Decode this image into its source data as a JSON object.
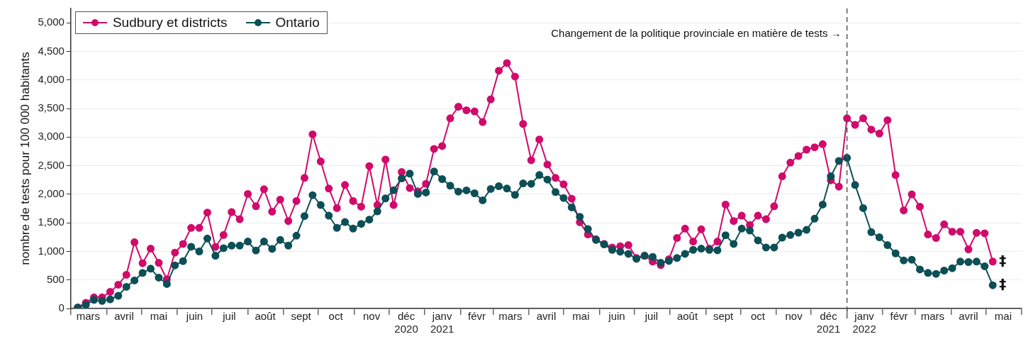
{
  "chart_data": {
    "type": "line",
    "ylabel": "nombre de tests pour 100 000 habitants",
    "x": [
      "2020-03-07",
      "2020-03-14",
      "2020-03-21",
      "2020-03-28",
      "2020-04-04",
      "2020-04-11",
      "2020-04-18",
      "2020-04-25",
      "2020-05-02",
      "2020-05-09",
      "2020-05-16",
      "2020-05-23",
      "2020-05-30",
      "2020-06-06",
      "2020-06-13",
      "2020-06-20",
      "2020-06-27",
      "2020-07-04",
      "2020-07-11",
      "2020-07-18",
      "2020-07-25",
      "2020-08-01",
      "2020-08-08",
      "2020-08-15",
      "2020-08-22",
      "2020-08-29",
      "2020-09-05",
      "2020-09-12",
      "2020-09-19",
      "2020-09-26",
      "2020-10-03",
      "2020-10-10",
      "2020-10-17",
      "2020-10-24",
      "2020-10-31",
      "2020-11-07",
      "2020-11-14",
      "2020-11-21",
      "2020-11-28",
      "2020-12-05",
      "2020-12-12",
      "2020-12-19",
      "2020-12-26",
      "2021-01-02",
      "2021-01-09",
      "2021-01-16",
      "2021-01-23",
      "2021-01-30",
      "2021-02-06",
      "2021-02-13",
      "2021-02-20",
      "2021-02-27",
      "2021-03-06",
      "2021-03-13",
      "2021-03-20",
      "2021-03-27",
      "2021-04-03",
      "2021-04-10",
      "2021-04-17",
      "2021-04-24",
      "2021-05-01",
      "2021-05-08",
      "2021-05-15",
      "2021-05-22",
      "2021-05-29",
      "2021-06-05",
      "2021-06-12",
      "2021-06-19",
      "2021-06-26",
      "2021-07-03",
      "2021-07-10",
      "2021-07-17",
      "2021-07-24",
      "2021-07-31",
      "2021-08-07",
      "2021-08-14",
      "2021-08-21",
      "2021-08-28",
      "2021-09-04",
      "2021-09-11",
      "2021-09-18",
      "2021-09-25",
      "2021-10-02",
      "2021-10-09",
      "2021-10-16",
      "2021-10-23",
      "2021-10-30",
      "2021-11-06",
      "2021-11-13",
      "2021-11-20",
      "2021-11-27",
      "2021-12-04",
      "2021-12-11",
      "2021-12-18",
      "2021-12-25",
      "2022-01-01",
      "2022-01-08",
      "2022-01-15",
      "2022-01-22",
      "2022-01-29",
      "2022-02-05",
      "2022-02-12",
      "2022-02-19",
      "2022-02-26",
      "2022-03-05",
      "2022-03-12",
      "2022-03-19",
      "2022-03-26",
      "2022-04-02",
      "2022-04-09",
      "2022-04-16",
      "2022-04-23",
      "2022-04-30",
      "2022-05-07"
    ],
    "series": [
      {
        "name": "Sudbury et districts",
        "color": "#d10a6b",
        "values": [
          20,
          100,
          195,
          195,
          293,
          417,
          590,
          1160,
          792,
          1048,
          800,
          512,
          978,
          1130,
          1411,
          1411,
          1679,
          1077,
          1287,
          1687,
          1563,
          2005,
          1790,
          2088,
          1695,
          1906,
          1531,
          1881,
          2286,
          3048,
          2574,
          2100,
          1757,
          2162,
          1881,
          1782,
          2492,
          1811,
          2607,
          1811,
          2389,
          2108,
          2050,
          2182,
          2793,
          2843,
          3329,
          3531,
          3469,
          3449,
          3264,
          3660,
          4162,
          4295,
          4059,
          3230,
          2595,
          2958,
          2521,
          2286,
          2174,
          1922,
          1510,
          1296,
          1213,
          1130,
          1068,
          1089,
          1110,
          883,
          924,
          821,
          759,
          862,
          1234,
          1398,
          1172,
          1386,
          1048,
          1172,
          1819,
          1531,
          1625,
          1460,
          1625,
          1563,
          1790,
          2314,
          2553,
          2669,
          2780,
          2822,
          2875,
          2244,
          2133,
          3329,
          3214,
          3329,
          3131,
          3061,
          3296,
          2335,
          1717,
          1997,
          1782,
          1296,
          1234,
          1473,
          1345,
          1345,
          1036,
          1324,
          1316,
          821
        ]
      },
      {
        "name": "Ontario",
        "color": "#0d4f56",
        "values": [
          15,
          66,
          152,
          132,
          161,
          223,
          380,
          491,
          623,
          697,
          541,
          429,
          755,
          829,
          1081,
          998,
          1225,
          924,
          1056,
          1101,
          1101,
          1172,
          1015,
          1172,
          1044,
          1200,
          1101,
          1275,
          1617,
          1984,
          1811,
          1625,
          1411,
          1514,
          1398,
          1481,
          1555,
          1699,
          1927,
          2071,
          2277,
          2360,
          2005,
          2030,
          2397,
          2265,
          2150,
          2046,
          2067,
          2017,
          1894,
          2092,
          2141,
          2100,
          1989,
          2190,
          2182,
          2335,
          2256,
          2038,
          1934,
          1770,
          1605,
          1390,
          1200,
          1122,
          1027,
          994,
          957,
          870,
          924,
          903,
          800,
          833,
          883,
          957,
          1027,
          1048,
          1027,
          1019,
          1283,
          1130,
          1398,
          1365,
          1192,
          1068,
          1068,
          1241,
          1287,
          1328,
          1377,
          1572,
          1819,
          2314,
          2583,
          2636,
          2162,
          1757,
          1337,
          1246,
          1110,
          965,
          842,
          854,
          684,
          623,
          606,
          664,
          705,
          821,
          813,
          821,
          739,
          408
        ]
      }
    ],
    "xlim": [
      "2020-03-01",
      "2022-06-01"
    ],
    "xticks": [
      {
        "value": "2020-03-01",
        "label": null
      },
      {
        "value": "2020-03-16",
        "label": "mars"
      },
      {
        "value": "2020-04-01",
        "label": null
      },
      {
        "value": "2020-04-16",
        "label": "avril"
      },
      {
        "value": "2020-05-01",
        "label": null
      },
      {
        "value": "2020-05-16",
        "label": "mai"
      },
      {
        "value": "2020-06-01",
        "label": null
      },
      {
        "value": "2020-06-16",
        "label": "juin"
      },
      {
        "value": "2020-07-01",
        "label": null
      },
      {
        "value": "2020-07-16",
        "label": "juil"
      },
      {
        "value": "2020-08-01",
        "label": null
      },
      {
        "value": "2020-08-16",
        "label": "août"
      },
      {
        "value": "2020-09-01",
        "label": null
      },
      {
        "value": "2020-09-16",
        "label": "sept"
      },
      {
        "value": "2020-10-01",
        "label": null
      },
      {
        "value": "2020-10-16",
        "label": "oct"
      },
      {
        "value": "2020-11-01",
        "label": null
      },
      {
        "value": "2020-11-16",
        "label": "nov"
      },
      {
        "value": "2020-12-01",
        "label": null
      },
      {
        "value": "2020-12-16",
        "label": "déc\n2020"
      },
      {
        "value": "2021-01-01",
        "label": null
      },
      {
        "value": "2021-01-16",
        "label": "janv\n2021"
      },
      {
        "value": "2021-02-01",
        "label": null
      },
      {
        "value": "2021-02-15",
        "label": "févr"
      },
      {
        "value": "2021-03-01",
        "label": null
      },
      {
        "value": "2021-03-16",
        "label": "mars"
      },
      {
        "value": "2021-04-01",
        "label": null
      },
      {
        "value": "2021-04-16",
        "label": "avril"
      },
      {
        "value": "2021-05-01",
        "label": null
      },
      {
        "value": "2021-05-16",
        "label": "mai"
      },
      {
        "value": "2021-06-01",
        "label": null
      },
      {
        "value": "2021-06-16",
        "label": "juin"
      },
      {
        "value": "2021-07-01",
        "label": null
      },
      {
        "value": "2021-07-16",
        "label": "juil"
      },
      {
        "value": "2021-08-01",
        "label": null
      },
      {
        "value": "2021-08-16",
        "label": "août"
      },
      {
        "value": "2021-09-01",
        "label": null
      },
      {
        "value": "2021-09-16",
        "label": "sept"
      },
      {
        "value": "2021-10-01",
        "label": null
      },
      {
        "value": "2021-10-16",
        "label": "oct"
      },
      {
        "value": "2021-11-01",
        "label": null
      },
      {
        "value": "2021-11-16",
        "label": "nov"
      },
      {
        "value": "2021-12-01",
        "label": null
      },
      {
        "value": "2021-12-16",
        "label": "déc\n2021"
      },
      {
        "value": "2022-01-01",
        "label": null
      },
      {
        "value": "2022-01-16",
        "label": "janv\n2022"
      },
      {
        "value": "2022-02-01",
        "label": null
      },
      {
        "value": "2022-02-15",
        "label": "févr"
      },
      {
        "value": "2022-03-01",
        "label": null
      },
      {
        "value": "2022-03-16",
        "label": "mars"
      },
      {
        "value": "2022-04-01",
        "label": null
      },
      {
        "value": "2022-04-16",
        "label": "avril"
      },
      {
        "value": "2022-05-01",
        "label": null
      },
      {
        "value": "2022-05-16",
        "label": "mai"
      },
      {
        "value": "2022-06-01",
        "label": null
      }
    ],
    "ylim": [
      0,
      5250
    ],
    "yticks": [
      0,
      500,
      {
        "value": 1000,
        "label": "1,000"
      },
      {
        "value": 1500,
        "label": "1,500"
      },
      {
        "value": 2000,
        "label": "2,000"
      },
      {
        "value": 2500,
        "label": "2,500"
      },
      {
        "value": 3000,
        "label": "3,000"
      },
      {
        "value": 3500,
        "label": "3,500"
      },
      {
        "value": 4000,
        "label": "4,000"
      },
      {
        "value": 4500,
        "label": "4,500"
      },
      {
        "value": 5000,
        "label": "5,000"
      }
    ],
    "ref_lines": [
      {
        "axis": "x",
        "value": "2022-01-01",
        "label": "Changement de la politique provinciale en matière de tests →",
        "color": "#555555",
        "line_style": "dashed"
      }
    ],
    "annotations": [
      {
        "text": "‡",
        "x": "2022-05-07",
        "y": 821
      },
      {
        "text": "‡",
        "x": "2022-05-07",
        "y": 408
      }
    ],
    "grid": "y",
    "legend": "top left",
    "marker": "circle",
    "line_style": "solid"
  }
}
